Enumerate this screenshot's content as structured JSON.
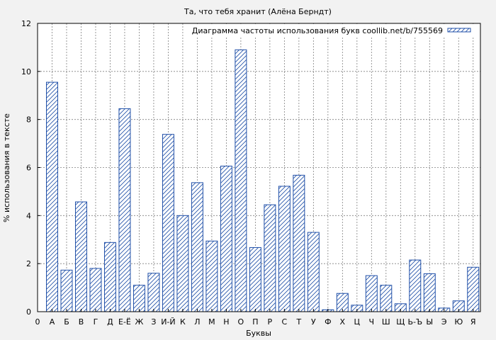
{
  "chart_data": {
    "type": "bar",
    "title": "Та, что тебя хранит (Алёна Берндт)",
    "xlabel": "Буквы",
    "ylabel": "% использования в тексте",
    "ylim": [
      0,
      12
    ],
    "yticks": [
      "0",
      "2",
      "4",
      "6",
      "8",
      "10",
      "12"
    ],
    "x_origin_label": "0",
    "grid": true,
    "legend_position": "top-right",
    "bar_color": "#1f4fa8",
    "categories": [
      "А",
      "Б",
      "В",
      "Г",
      "Д",
      "Е-Ё",
      "Ж",
      "З",
      "И-Й",
      "К",
      "Л",
      "М",
      "Н",
      "О",
      "П",
      "Р",
      "С",
      "Т",
      "У",
      "Ф",
      "Х",
      "Ц",
      "Ч",
      "Ш",
      "Щ",
      "Ь-Ъ",
      "Ы",
      "Э",
      "Ю",
      "Я"
    ],
    "series": [
      {
        "name": "Диаграмма частоты использования букв coollib.net/b/755569",
        "values": [
          9.55,
          1.73,
          4.57,
          1.8,
          2.88,
          8.45,
          1.1,
          1.6,
          7.38,
          4.0,
          5.37,
          2.94,
          6.06,
          10.9,
          2.67,
          4.45,
          5.22,
          5.68,
          3.3,
          0.08,
          0.76,
          0.27,
          1.5,
          1.1,
          0.33,
          2.15,
          1.58,
          0.15,
          0.45,
          1.85
        ]
      }
    ]
  }
}
